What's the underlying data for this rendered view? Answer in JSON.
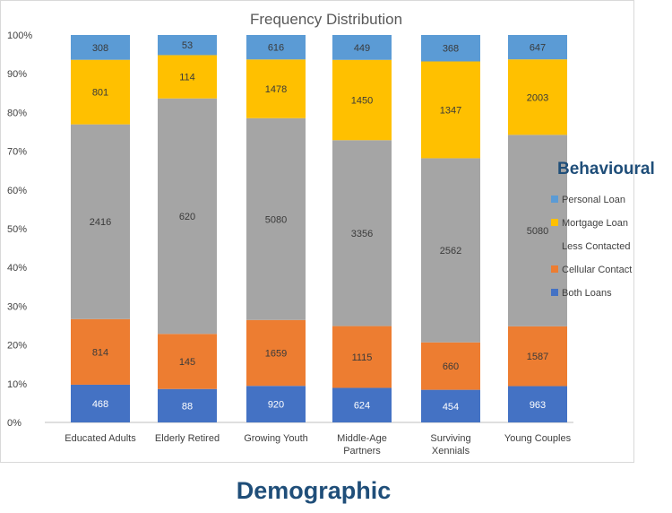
{
  "chart_data": {
    "type": "bar",
    "stacked": "percent",
    "title": "Frequency Distribution",
    "xlabel": "Demographic",
    "legend_title": "Behavioural",
    "legend_position": "right",
    "ylim": [
      0,
      100
    ],
    "yticks": [
      "0%",
      "10%",
      "20%",
      "30%",
      "40%",
      "50%",
      "60%",
      "70%",
      "80%",
      "90%",
      "100%"
    ],
    "categories": [
      "Educated Adults",
      "Elderly Retired",
      "Growing Youth",
      "Middle-Age Partners",
      "Surviving Xennials",
      "Young Couples"
    ],
    "series": [
      {
        "name": "Both Loans",
        "color": "#4472c4",
        "values": [
          468,
          88,
          920,
          624,
          454,
          963
        ]
      },
      {
        "name": "Cellular Contact",
        "color": "#ed7d31",
        "values": [
          814,
          145,
          1659,
          1115,
          660,
          1587
        ]
      },
      {
        "name": "Less Contacted",
        "color": "#a5a5a5",
        "values": [
          2416,
          620,
          5080,
          3356,
          2562,
          5080
        ]
      },
      {
        "name": "Mortgage Loan",
        "color": "#ffc000",
        "values": [
          801,
          114,
          1478,
          1450,
          1347,
          2003
        ]
      },
      {
        "name": "Personal Loan",
        "color": "#5b9bd5",
        "values": [
          308,
          53,
          616,
          449,
          368,
          647
        ]
      }
    ],
    "grid": false
  }
}
